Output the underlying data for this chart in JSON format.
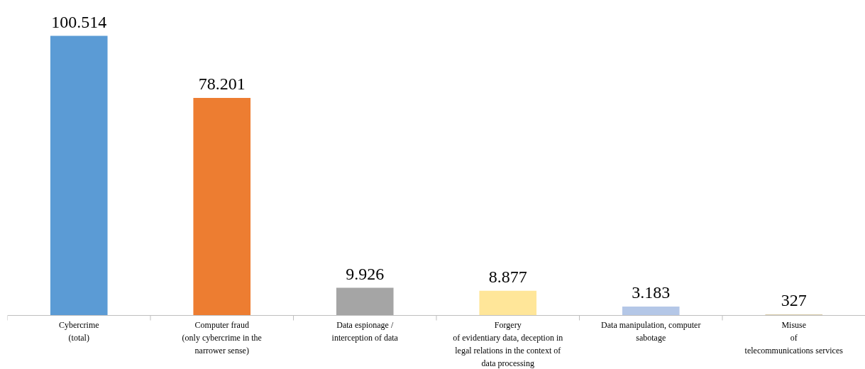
{
  "chart_data": {
    "type": "bar",
    "categories": [
      "Cybercrime\n(total)",
      "Computer fraud\n(only cybercrime in the\nnarrower sense)",
      "Data espionage /\ninterception of data",
      "Forgery\nof evidentiary data, deception in\nlegal relations in the context of\ndata processing",
      "Data manipulation, computer\nsabotage",
      "Misuse\nof\ntelecommunications services"
    ],
    "values": [
      100514,
      78201,
      9926,
      8877,
      3183,
      327
    ],
    "colors": [
      "#5b9bd5",
      "#ed7d31",
      "#a5a5a5",
      "#ffe699",
      "#b4c7e7",
      "#c9b98a"
    ],
    "value_labels": [
      "100.514",
      "78.201",
      "9.926",
      "8.877",
      "3.183",
      "327"
    ],
    "grid": false
  }
}
